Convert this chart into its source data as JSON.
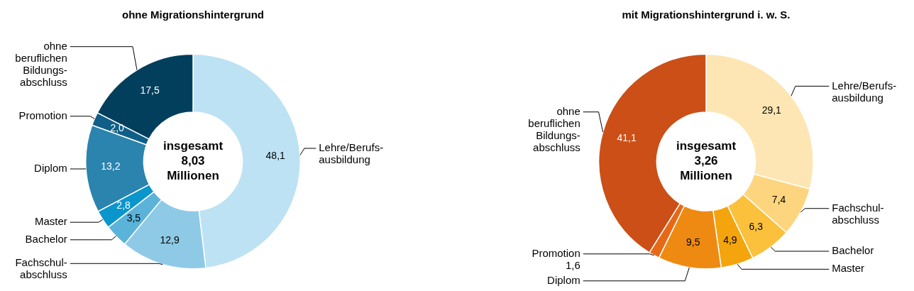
{
  "chart_data": [
    {
      "type": "donut",
      "title": "ohne Migrationshintergrund",
      "categories": [
        "Lehre/Berufs-\nausbildung",
        "Fachschul-\nabschluss",
        "Bachelor",
        "Master",
        "Diplom",
        "Promotion",
        "ohne\nberuflichen\nBildungs-\nabschluss"
      ],
      "values": [
        48.1,
        12.9,
        3.5,
        2.8,
        13.2,
        2.0,
        17.5
      ],
      "value_labels": [
        "48,1",
        "12,9",
        "3,5",
        "2,8",
        "13,2",
        "2,0",
        "17,5"
      ],
      "colors": [
        "#bde2f4",
        "#8ecae6",
        "#5bb3d9",
        "#0a96cc",
        "#2b84ad",
        "#0f5f88",
        "#023f5c"
      ],
      "annotations": [
        "insgesamt\n8,03\nMillionen"
      ]
    },
    {
      "type": "donut",
      "title": "mit Migrationshintergrund i. w. S.",
      "categories": [
        "Lehre/Berufs-\nausbildung",
        "Fachschul-\nabschluss",
        "Bachelor",
        "Master",
        "Diplom",
        "Promotion",
        "ohne\nberuflichen\nBildungs-\nabschluss"
      ],
      "values": [
        29.1,
        7.4,
        6.3,
        4.9,
        9.5,
        1.6,
        41.1
      ],
      "value_labels": [
        "29,1",
        "7,4",
        "6,3",
        "4,9",
        "9,5",
        "1,6",
        "41,1"
      ],
      "colors": [
        "#fde6b3",
        "#fdd57e",
        "#fbc13c",
        "#f4a40c",
        "#ee8a12",
        "#e66a16",
        "#cb4f17"
      ],
      "annotations": [
        "insgesamt\n3,26\nMillionen"
      ]
    }
  ]
}
